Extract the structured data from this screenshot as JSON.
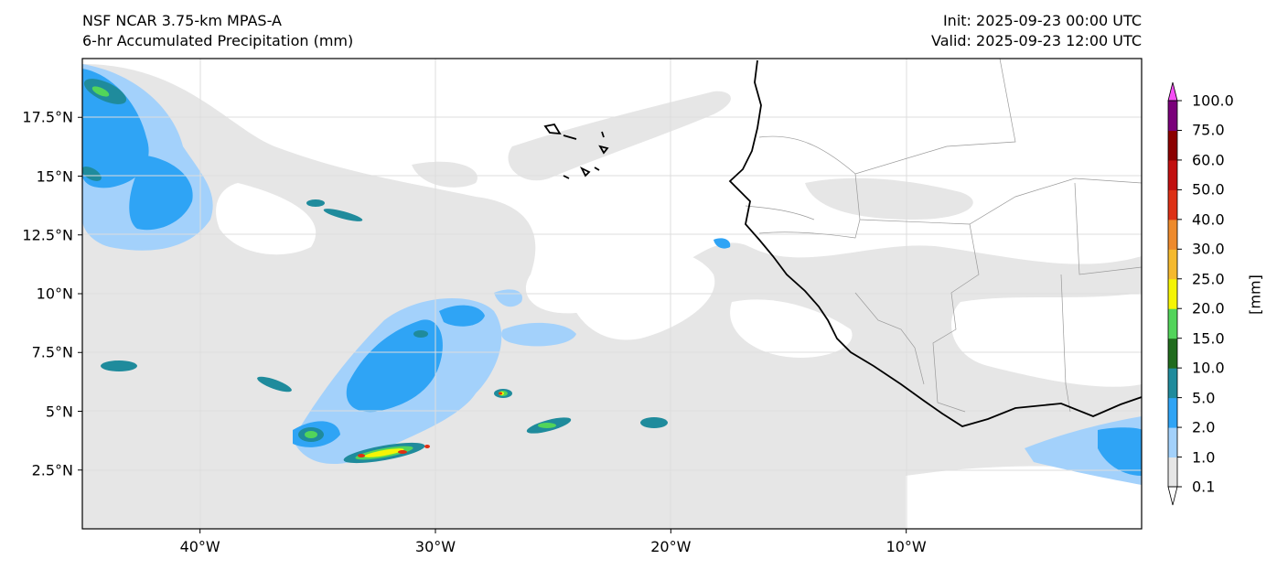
{
  "header": {
    "model": "NSF NCAR 3.75-km MPAS-A",
    "field": "6-hr Accumulated Precipitation (mm)",
    "init": "Init: 2025-09-23 00:00 UTC",
    "valid": "Valid: 2025-09-23 12:00 UTC"
  },
  "map": {
    "lon_range": [
      -45,
      0
    ],
    "lat_range": [
      0,
      20
    ],
    "x_ticks": [
      {
        "value": -40,
        "label": "40°W"
      },
      {
        "value": -30,
        "label": "30°W"
      },
      {
        "value": -20,
        "label": "20°W"
      },
      {
        "value": -10,
        "label": "10°W"
      }
    ],
    "y_ticks": [
      {
        "value": 2.5,
        "label": "2.5°N"
      },
      {
        "value": 5,
        "label": "5°N"
      },
      {
        "value": 7.5,
        "label": "7.5°N"
      },
      {
        "value": 10,
        "label": "10°N"
      },
      {
        "value": 12.5,
        "label": "12.5°N"
      },
      {
        "value": 15,
        "label": "15°N"
      },
      {
        "value": 17.5,
        "label": "17.5°N"
      }
    ],
    "colors": {
      "coast": "#000000",
      "border": "#9a9a9a",
      "grid": "#dddddd"
    }
  },
  "colorbar": {
    "title": "[mm]",
    "labels": [
      "0.1",
      "1.0",
      "2.0",
      "5.0",
      "10.0",
      "15.0",
      "20.0",
      "25.0",
      "30.0",
      "40.0",
      "50.0",
      "60.0",
      "75.0",
      "100.0"
    ],
    "colors": [
      "#e6e6e6",
      "#a3d1fb",
      "#2fa4f5",
      "#1f8b9c",
      "#206b1d",
      "#52d45a",
      "#f5f505",
      "#f5b92e",
      "#ee8a2c",
      "#dd3015",
      "#c10f0f",
      "#8b0000",
      "#7a007a",
      "#f64ff5"
    ]
  }
}
